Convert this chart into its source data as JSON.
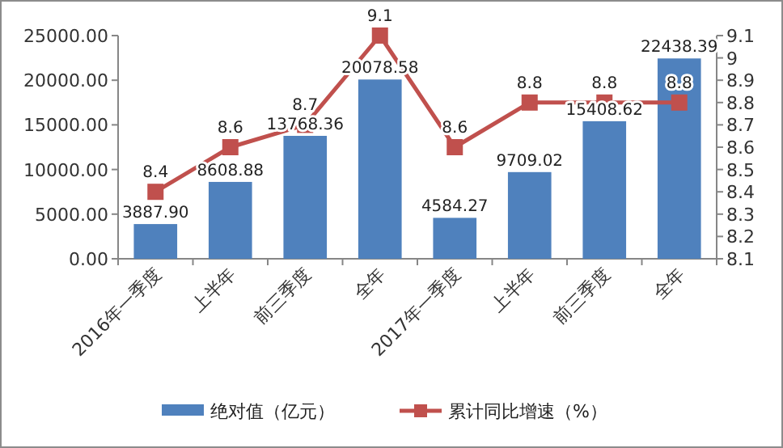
{
  "chart_data": {
    "type": "bar",
    "categories": [
      "2016年一季度",
      "上半年",
      "前三季度",
      "全年",
      "2017年一季度",
      "上半年",
      "前三季度",
      "全年"
    ],
    "series": [
      {
        "name": "绝对值（亿元）",
        "color": "#4f81bd",
        "values": [
          3887.9,
          8608.88,
          13768.36,
          20078.58,
          4584.27,
          9709.02,
          15408.62,
          22438.39
        ],
        "value_labels": [
          "3887.90",
          "8608.88",
          "13768.36",
          "20078.58",
          "4584.27",
          "9709.02",
          "15408.62",
          "22438.39"
        ]
      },
      {
        "name": "累计同比增速（%）",
        "type": "line",
        "axis": "y2",
        "color": "#c0504d",
        "marker": "square",
        "values": [
          8.4,
          8.6,
          8.7,
          9.1,
          8.6,
          8.8,
          8.8,
          8.8
        ]
      }
    ],
    "data_labels": true,
    "ylim": [
      0,
      25000
    ],
    "yticks": [
      {
        "value": 0,
        "label": "0.00"
      },
      {
        "value": 5000,
        "label": "5000.00"
      },
      {
        "value": 10000,
        "label": "10000.00"
      },
      {
        "value": 15000,
        "label": "15000.00"
      },
      {
        "value": 20000,
        "label": "20000.00"
      },
      {
        "value": 25000,
        "label": "25000.00"
      }
    ],
    "y2lim": [
      8.1,
      9.1
    ],
    "y2ticks": [
      8.1,
      8.2,
      8.3,
      8.4,
      8.5,
      8.6,
      8.7,
      8.8,
      8.9,
      9,
      9.1
    ],
    "legend": "bottom",
    "grid": false
  }
}
